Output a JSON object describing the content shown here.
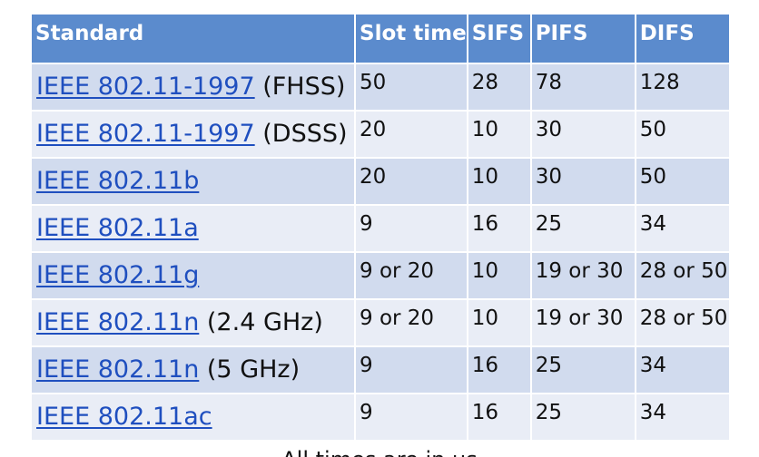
{
  "headers": {
    "standard": "Standard",
    "slot_time": "Slot time",
    "sifs": "SIFS",
    "pifs": "PIFS",
    "difs": "DIFS"
  },
  "rows": [
    {
      "link": "IEEE 802.11-1997",
      "suffix": " (FHSS)",
      "slot": "50",
      "sifs": "28",
      "pifs": "78",
      "difs": "128"
    },
    {
      "link": "IEEE 802.11-1997",
      "suffix": " (DSSS)",
      "slot": "20",
      "sifs": "10",
      "pifs": "30",
      "difs": "50"
    },
    {
      "link": "IEEE 802.11b",
      "suffix": "",
      "slot": "20",
      "sifs": "10",
      "pifs": "30",
      "difs": "50"
    },
    {
      "link": "IEEE 802.11a",
      "suffix": "",
      "slot": "9",
      "sifs": "16",
      "pifs": "25",
      "difs": "34"
    },
    {
      "link": "IEEE 802.11g",
      "suffix": "",
      "slot": "9 or 20",
      "sifs": "10",
      "pifs": "19 or 30",
      "difs": "28 or 50"
    },
    {
      "link": "IEEE 802.11n",
      "suffix": " (2.4 GHz)",
      "slot": "9 or 20",
      "sifs": "10",
      "pifs": "19 or 30",
      "difs": "28 or 50"
    },
    {
      "link": "IEEE 802.11n",
      "suffix": " (5 GHz)",
      "slot": "9",
      "sifs": "16",
      "pifs": "25",
      "difs": "34"
    },
    {
      "link": "IEEE 802.11ac",
      "suffix": "",
      "slot": "9",
      "sifs": "16",
      "pifs": "25",
      "difs": "34"
    }
  ],
  "caption": "All times are in µs",
  "colors": {
    "header_bg": "#5b8bcd",
    "row_odd": "#d1dbee",
    "row_even": "#e9edf6",
    "link": "#1f4fbf"
  }
}
